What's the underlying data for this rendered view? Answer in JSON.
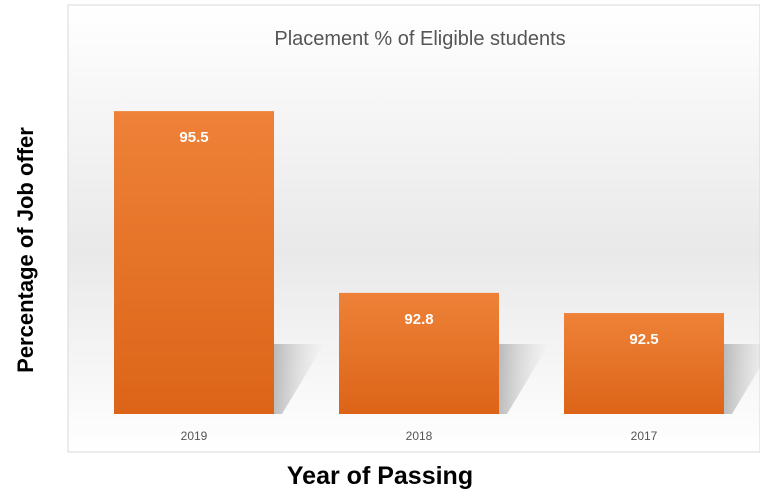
{
  "chart_data": {
    "type": "bar",
    "title": "Placement % of Eligible students",
    "xlabel": "Year of Passing",
    "ylabel": "Percentage of Job offer",
    "categories": [
      "2019",
      "2018",
      "2017"
    ],
    "values": [
      95.5,
      92.8,
      92.5
    ],
    "data_labels": [
      "95.5",
      "92.8",
      "92.5"
    ],
    "ylim": [
      91,
      96.2
    ],
    "grid": false,
    "legend": "none",
    "bar_color": "#E8732A",
    "bar_color_dark": "#D9621A",
    "label_color": "#ffffff"
  }
}
